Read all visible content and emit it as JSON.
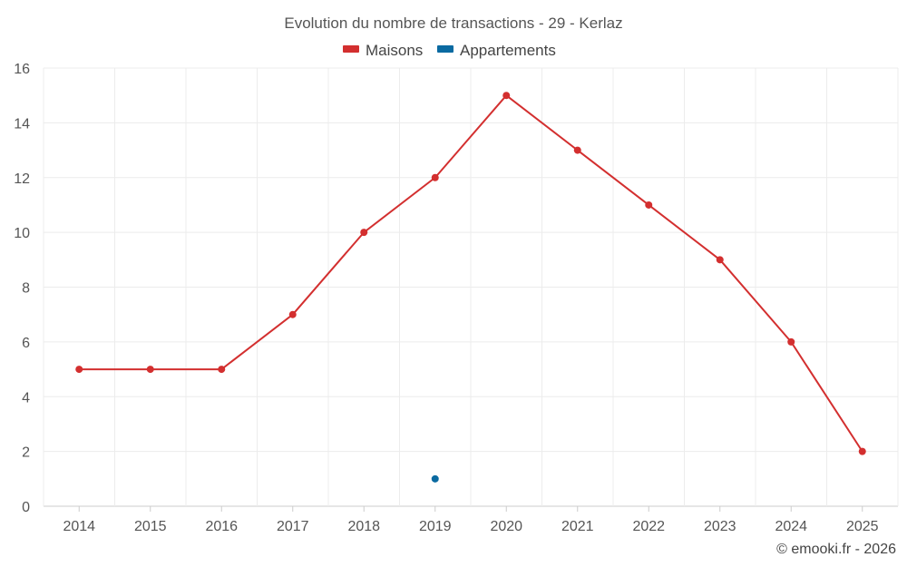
{
  "chart_data": {
    "type": "line",
    "title": "Evolution du nombre de transactions - 29 - Kerlaz",
    "categories": [
      "2014",
      "2015",
      "2016",
      "2017",
      "2018",
      "2019",
      "2020",
      "2021",
      "2022",
      "2023",
      "2024",
      "2025"
    ],
    "series": [
      {
        "name": "Maisons",
        "color": "#d32f2f",
        "values": [
          5,
          5,
          5,
          7,
          10,
          12,
          15,
          13,
          11,
          9,
          6,
          2
        ]
      },
      {
        "name": "Appartements",
        "color": "#0a6aa1",
        "values": [
          null,
          null,
          null,
          null,
          null,
          1,
          null,
          null,
          null,
          null,
          null,
          null
        ]
      }
    ],
    "ylim": [
      0,
      16
    ],
    "yticks": [
      0,
      2,
      4,
      6,
      8,
      10,
      12,
      14,
      16
    ],
    "grid": true,
    "legend": "top-center",
    "xlabel": "",
    "ylabel": ""
  },
  "footer": {
    "copyright": "© emooki.fr - 2026"
  }
}
